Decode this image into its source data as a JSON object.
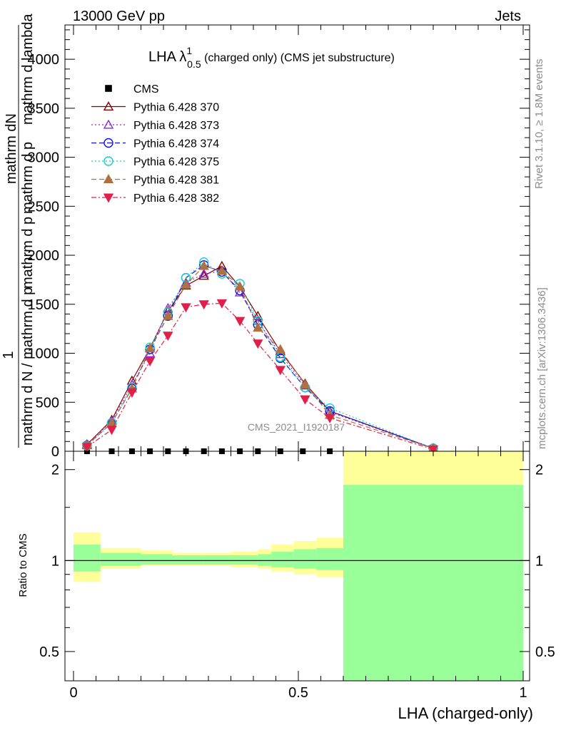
{
  "header": {
    "left": "13000 GeV pp",
    "right": "Jets"
  },
  "side": {
    "rivet": "Rivet 3.1.10, ≥ 1.8M events",
    "mcplots": "mcplots.cern.ch [arXiv:1306.3436]"
  },
  "watermark": "CMS_2021_I1920187",
  "chart_data": [
    {
      "type": "line",
      "title": {
        "main": "LHA λ",
        "sup": "1",
        "sub": "0.5",
        "rest": " (charged only) (CMS jet substructure)"
      },
      "ylabel": {
        "one": "1",
        "top_num": "mathrm dN",
        "top_den": "mathrm d p",
        "top_den_rest": "mathrm d lambda",
        "mid": "mathrm d N",
        "bottom": "mathrm d N / mathrm d p",
        "bottom_rest": "mathrm d p",
        "bottom_tail": "mathrm d lambda"
      },
      "xlim": [
        0,
        1
      ],
      "ylim": [
        0,
        4350
      ],
      "yticks": [
        0,
        500,
        1000,
        1500,
        2000,
        2500,
        3000,
        3500,
        4000
      ],
      "ytick_labels": [
        "0",
        "500",
        "1000",
        "1500",
        "2000",
        "2500",
        "3000",
        "3500",
        "4000"
      ],
      "x": [
        0.03,
        0.085,
        0.13,
        0.17,
        0.21,
        0.25,
        0.29,
        0.33,
        0.37,
        0.41,
        0.46,
        0.515,
        0.57,
        0.8
      ],
      "series": [
        {
          "name": "CMS",
          "color": "#000000",
          "marker": "square",
          "dash": "none",
          "x": [
            0.03,
            0.085,
            0.13,
            0.17,
            0.21,
            0.25,
            0.29,
            0.33,
            0.37,
            0.41,
            0.46,
            0.51,
            0.57
          ],
          "values": [
            0,
            0,
            0,
            0,
            0,
            0,
            0,
            0,
            0,
            0,
            0,
            0,
            0
          ]
        },
        {
          "name": "Pythia 6.428 370",
          "color": "#8b0000",
          "marker": "triangle-open",
          "dash": "solid",
          "values": [
            70,
            320,
            720,
            1050,
            1430,
            1690,
            1790,
            1890,
            1680,
            1380,
            1020,
            690,
            410,
            30
          ]
        },
        {
          "name": "Pythia 6.428 373",
          "color": "#8a2be2",
          "marker": "triangle-open",
          "dash": "dotted",
          "values": [
            65,
            310,
            680,
            1000,
            1460,
            1720,
            1810,
            1840,
            1620,
            1330,
            990,
            670,
            400,
            30
          ]
        },
        {
          "name": "Pythia 6.428 374",
          "color": "#1010e0",
          "marker": "circle-open",
          "dash": "dashed",
          "values": [
            60,
            290,
            640,
            1040,
            1380,
            1770,
            1900,
            1830,
            1640,
            1290,
            950,
            650,
            410,
            30
          ]
        },
        {
          "name": "Pythia 6.428 375",
          "color": "#10d0c8",
          "marker": "circle-open",
          "dash": "dotted",
          "values": [
            55,
            290,
            650,
            1060,
            1420,
            1770,
            1930,
            1810,
            1710,
            1330,
            960,
            650,
            440,
            30
          ]
        },
        {
          "name": "Pythia 6.428 381",
          "color": "#b07040",
          "marker": "triangle-filled",
          "dash": "dashed",
          "values": [
            60,
            290,
            640,
            1050,
            1380,
            1700,
            1890,
            1840,
            1680,
            1260,
            1040,
            680,
            370,
            30
          ]
        },
        {
          "name": "Pythia 6.428 382",
          "color": "#e0204a",
          "marker": "triangle-down-filled",
          "dash": "dashdot",
          "values": [
            45,
            220,
            600,
            920,
            1180,
            1470,
            1500,
            1510,
            1330,
            1100,
            830,
            530,
            340,
            20
          ]
        }
      ]
    },
    {
      "type": "area",
      "ylabel": "Ratio to CMS",
      "xlabel": "LHA (charged-only)",
      "xlim": [
        0,
        1
      ],
      "ylim": [
        0.4,
        2.3
      ],
      "log_y": true,
      "xticks": [
        0,
        0.5,
        1
      ],
      "xtick_labels": [
        "0",
        "0.5",
        "1"
      ],
      "yticks": [
        0.5,
        1,
        2
      ],
      "ytick_labels": [
        "0.5",
        "1",
        "2"
      ],
      "reference": 1,
      "bands": {
        "edges": [
          0,
          0.06,
          0.15,
          0.22,
          0.29,
          0.35,
          0.41,
          0.44,
          0.49,
          0.54,
          0.6,
          1.0
        ],
        "yellow_low": [
          0.85,
          0.94,
          0.96,
          0.96,
          0.96,
          0.95,
          0.94,
          0.92,
          0.9,
          0.88,
          0.0
        ],
        "yellow_high": [
          1.24,
          1.1,
          1.08,
          1.06,
          1.06,
          1.07,
          1.09,
          1.13,
          1.16,
          1.19,
          2.3
        ],
        "green_low": [
          0.92,
          0.96,
          0.97,
          0.97,
          0.97,
          0.97,
          0.96,
          0.95,
          0.94,
          0.93,
          0.0
        ],
        "green_high": [
          1.13,
          1.06,
          1.05,
          1.04,
          1.04,
          1.04,
          1.05,
          1.07,
          1.09,
          1.1,
          1.78
        ],
        "yellow_color": "#ffff99",
        "green_color": "#99ff99"
      }
    }
  ]
}
